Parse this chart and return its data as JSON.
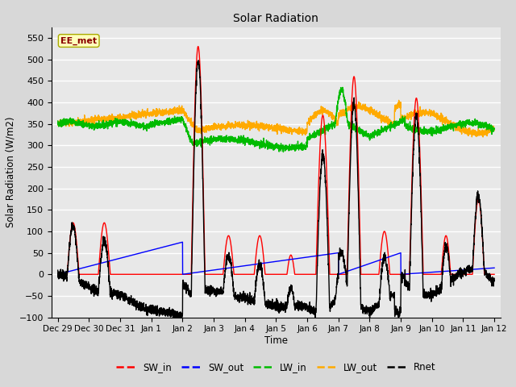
{
  "title": "Solar Radiation",
  "xlabel": "Time",
  "ylabel": "Solar Radiation (W/m2)",
  "annotation": "EE_met",
  "ylim": [
    -100,
    575
  ],
  "yticks": [
    -100,
    -50,
    0,
    50,
    100,
    150,
    200,
    250,
    300,
    350,
    400,
    450,
    500,
    550
  ],
  "x_labels": [
    "Dec 29",
    "Dec 30",
    "Dec 31",
    "Jan 1",
    "Jan 2",
    "Jan 3",
    "Jan 4",
    "Jan 5",
    "Jan 6",
    "Jan 7",
    "Jan 8",
    "Jan 9",
    "Jan 10",
    "Jan 11",
    "Jan 12"
  ],
  "series_colors": {
    "SW_in": "#ff0000",
    "SW_out": "#0000ff",
    "LW_in": "#00bb00",
    "LW_out": "#ffaa00",
    "Rnet": "#000000"
  },
  "bg_color": "#e8e8e8",
  "grid_color": "#ffffff",
  "legend_items": [
    "SW_in",
    "SW_out",
    "LW_in",
    "LW_out",
    "Rnet"
  ]
}
